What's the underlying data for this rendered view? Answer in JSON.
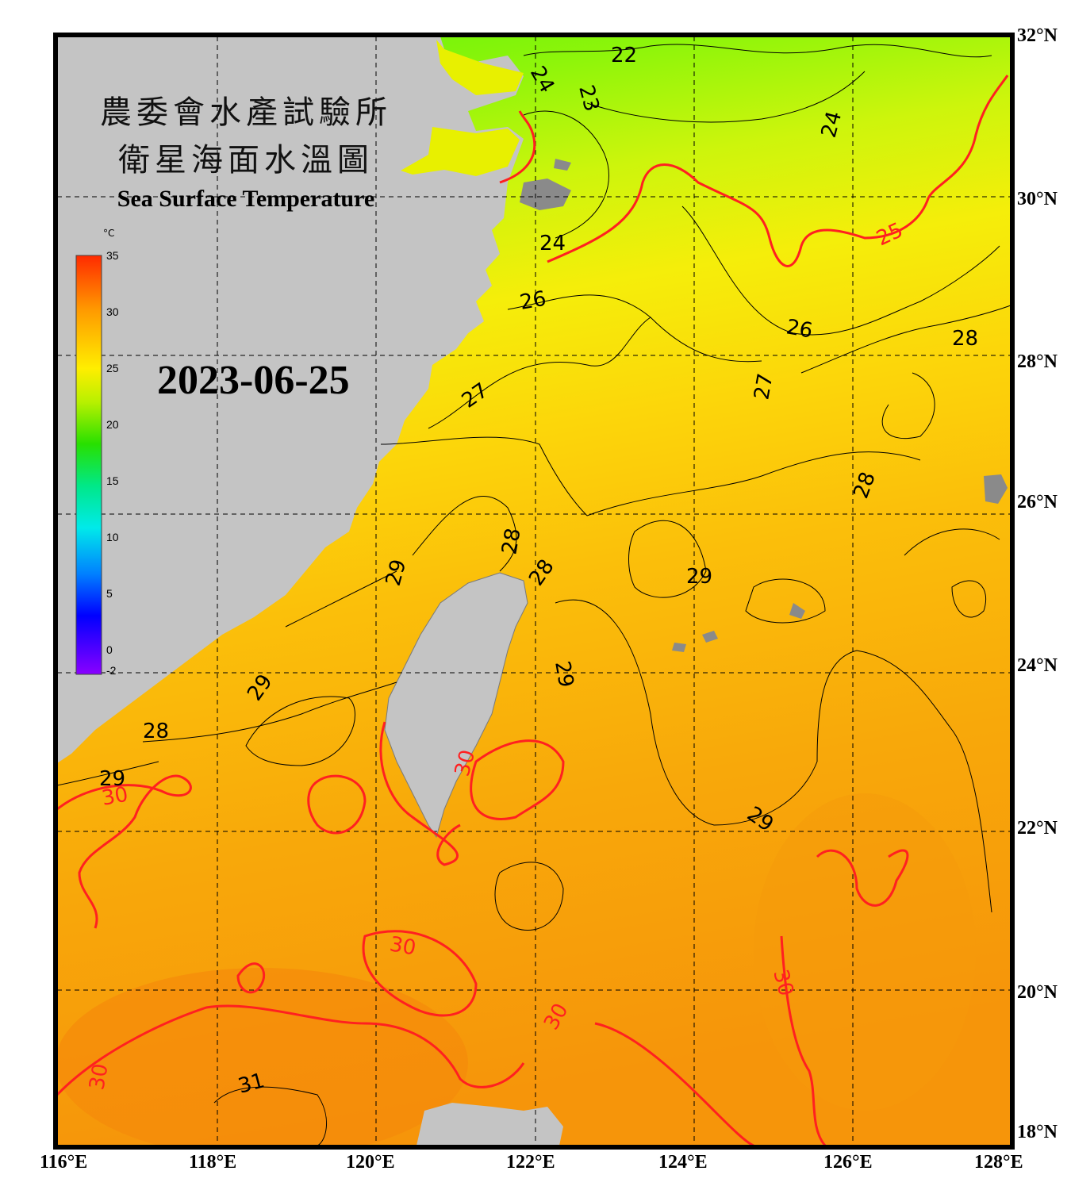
{
  "title": {
    "line1": "農委會水產試驗所",
    "line2": "衛星海面水溫圖",
    "english": "Sea Surface Temperature"
  },
  "date": "2023-06-25",
  "colorbar": {
    "unit": "°C",
    "min": -2,
    "max": 35,
    "ticks": [
      "35",
      "30",
      "25",
      "20",
      "15",
      "10",
      "5",
      "0",
      "-2"
    ]
  },
  "axes": {
    "longitude_labels": [
      "116°E",
      "118°E",
      "120°E",
      "122°E",
      "124°E",
      "126°E",
      "128°E"
    ],
    "latitude_labels": [
      "32°N",
      "30°N",
      "28°N",
      "26°N",
      "24°N",
      "22°N",
      "20°N",
      "18°N"
    ],
    "lon_range": [
      116,
      128
    ],
    "lat_range": [
      18,
      32
    ],
    "grid": "dashed"
  },
  "contour_labels": [
    {
      "text": "22",
      "color": "black"
    },
    {
      "text": "23",
      "color": "black"
    },
    {
      "text": "24",
      "color": "black"
    },
    {
      "text": "24",
      "color": "black"
    },
    {
      "text": "24",
      "color": "black"
    },
    {
      "text": "25",
      "color": "red"
    },
    {
      "text": "26",
      "color": "black"
    },
    {
      "text": "26",
      "color": "black"
    },
    {
      "text": "27",
      "color": "black"
    },
    {
      "text": "27",
      "color": "black"
    },
    {
      "text": "28",
      "color": "black"
    },
    {
      "text": "28",
      "color": "black"
    },
    {
      "text": "28",
      "color": "black"
    },
    {
      "text": "28",
      "color": "black"
    },
    {
      "text": "28",
      "color": "black"
    },
    {
      "text": "29",
      "color": "black"
    },
    {
      "text": "29",
      "color": "black"
    },
    {
      "text": "29",
      "color": "black"
    },
    {
      "text": "29",
      "color": "black"
    },
    {
      "text": "29",
      "color": "black"
    },
    {
      "text": "29",
      "color": "black"
    },
    {
      "text": "30",
      "color": "red"
    },
    {
      "text": "30",
      "color": "red"
    },
    {
      "text": "30",
      "color": "red"
    },
    {
      "text": "30",
      "color": "red"
    },
    {
      "text": "30",
      "color": "red"
    },
    {
      "text": "30",
      "color": "red"
    },
    {
      "text": "31",
      "color": "black"
    }
  ],
  "colors": {
    "land": "#c4c4c4",
    "frame": "#000000",
    "warm_contour": "#ff2020",
    "contour": "#000000"
  }
}
